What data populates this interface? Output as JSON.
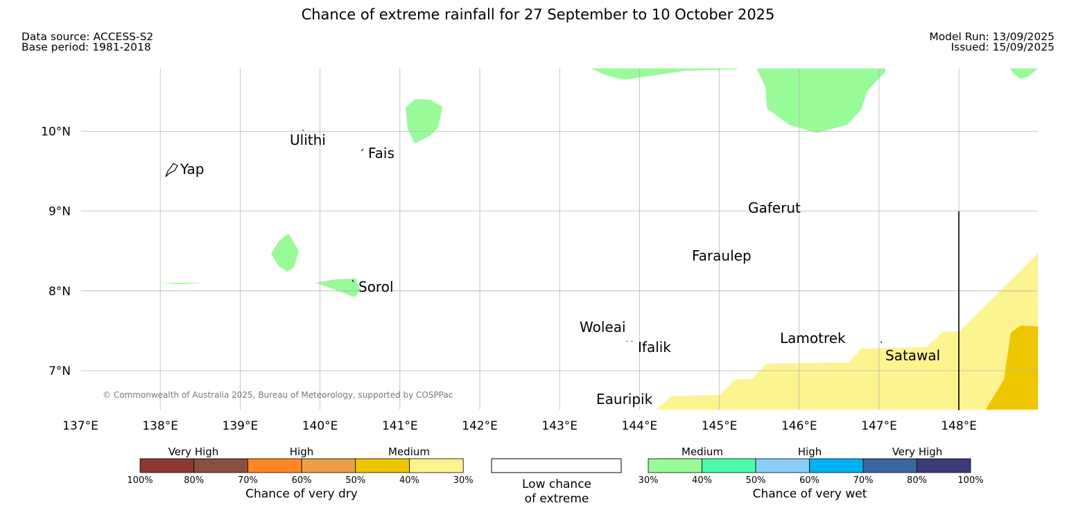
{
  "title": "Chance of extreme rainfall for 27 September to 10 October 2025",
  "meta": {
    "source": "Data source: ACCESS-S2",
    "base_period": "Base period: 1981-2018",
    "model_run": "Model Run: 13/09/2025",
    "issued": "Issued: 15/09/2025"
  },
  "map": {
    "lon_range": [
      137,
      149
    ],
    "lat_range": [
      6.5,
      10.8
    ],
    "lon_ticks": [
      "137°E",
      "138°E",
      "139°E",
      "140°E",
      "141°E",
      "142°E",
      "143°E",
      "144°E",
      "145°E",
      "146°E",
      "147°E",
      "148°E"
    ],
    "lat_ticks": [
      "7°N",
      "8°N",
      "9°N",
      "10°N"
    ],
    "copyright": "© Commonwealth of Australia 2025, Bureau of Meteorology, supported by COSPPac",
    "places": [
      {
        "name": "Yap",
        "lon": 138.1,
        "lat": 9.5
      },
      {
        "name": "Ulithi",
        "lon": 139.8,
        "lat": 10.0
      },
      {
        "name": "Fais",
        "lon": 140.5,
        "lat": 9.75
      },
      {
        "name": "Sorol",
        "lon": 140.4,
        "lat": 8.1
      },
      {
        "name": "Gaferut",
        "lon": 145.4,
        "lat": 9.0
      },
      {
        "name": "Faraulep",
        "lon": 144.7,
        "lat": 8.4
      },
      {
        "name": "Woleai",
        "lon": 143.9,
        "lat": 7.4
      },
      {
        "name": "Ifalik",
        "lon": 144.0,
        "lat": 7.35
      },
      {
        "name": "Lamotrek",
        "lon": 145.9,
        "lat": 7.4
      },
      {
        "name": "Satawal",
        "lon": 147.0,
        "lat": 7.35
      },
      {
        "name": "Eauripik",
        "lon": 143.5,
        "lat": 6.6
      }
    ],
    "colors": {
      "wet_medium_30_40": "#98fb98",
      "dry_medium_30_40": "#fdf38f",
      "dry_medium_40_50": "#edc600"
    }
  },
  "legend": {
    "dry": {
      "headers": [
        "Very High",
        "High",
        "Medium"
      ],
      "ticks": [
        "100%",
        "80%",
        "70%",
        "60%",
        "50%",
        "40%",
        "30%"
      ],
      "colors": [
        "#8b3a33",
        "#8b4e40",
        "#ff8726",
        "#ec9e4a",
        "#edc600",
        "#fdf38f"
      ],
      "title": "Chance of very dry"
    },
    "low": {
      "line1": "Low chance",
      "line2": "of extreme"
    },
    "wet": {
      "headers": [
        "Medium",
        "High",
        "Very High"
      ],
      "ticks": [
        "30%",
        "40%",
        "50%",
        "60%",
        "70%",
        "80%",
        "100%"
      ],
      "colors": [
        "#98fb98",
        "#4dfdab",
        "#87cefa",
        "#00b1f0",
        "#3a64a3",
        "#3c3b79"
      ],
      "title": "Chance of very wet"
    }
  }
}
